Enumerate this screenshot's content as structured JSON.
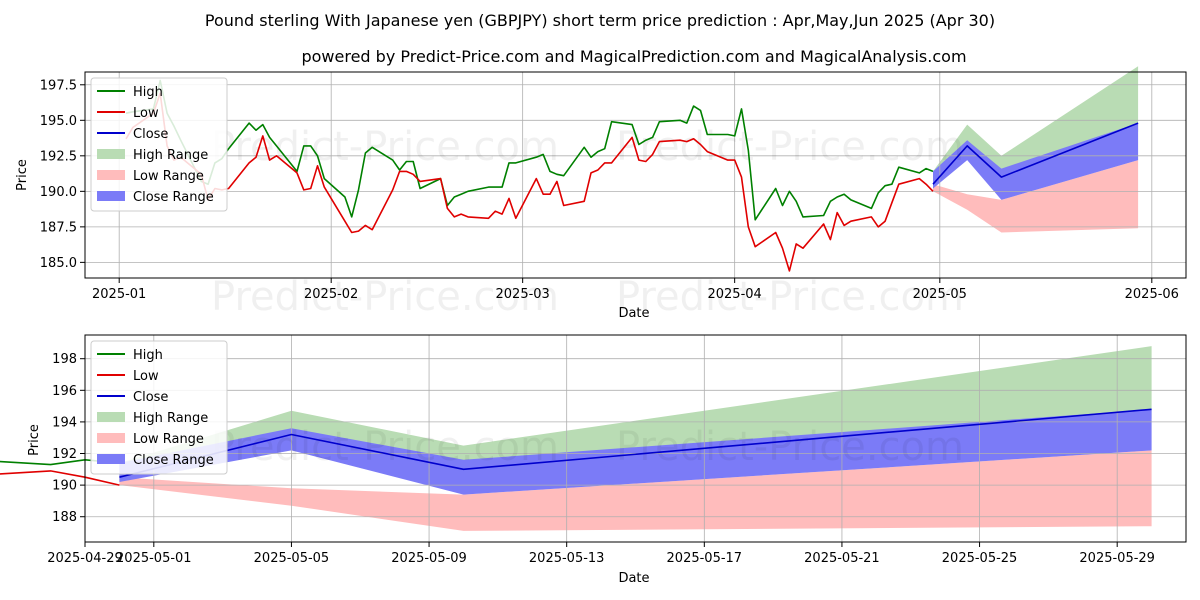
{
  "title": "Pound sterling With Japanese yen (GBPJPY) short term price prediction : Apr,May,Jun 2025 (Apr 30)",
  "subtitle": "powered by Predict-Price.com and MagicalPrediction.com and MagicalAnalysis.com",
  "watermark": "Predict-Price.com",
  "colors": {
    "high": "#008000",
    "low": "#e00000",
    "close": "#0000cc",
    "high_range": "#b9dcb4",
    "low_range": "#ffbcbc",
    "close_range": "#7b7bf7"
  },
  "chart_data": [
    {
      "type": "line",
      "xlabel": "Date",
      "ylabel": "Price",
      "grid": true,
      "legend_position": "top-left",
      "x_ticks": [
        "2025-01",
        "2025-02",
        "2025-03",
        "2025-04",
        "2025-05",
        "2025-06"
      ],
      "y_ticks": [
        "185.0",
        "187.5",
        "190.0",
        "192.5",
        "195.0",
        "197.5"
      ],
      "xlim": [
        "2024-12-27",
        "2025-06-06"
      ],
      "ylim": [
        183.9,
        198.4
      ],
      "legend": [
        "High",
        "Low",
        "Close",
        "High Range",
        "Low Range",
        "Close Range"
      ],
      "history_dates": [
        "2025-01-02",
        "2025-01-03",
        "2025-01-06",
        "2025-01-07",
        "2025-01-08",
        "2025-01-09",
        "2025-01-10",
        "2025-01-13",
        "2025-01-14",
        "2025-01-15",
        "2025-01-16",
        "2025-01-17",
        "2025-01-20",
        "2025-01-21",
        "2025-01-22",
        "2025-01-23",
        "2025-01-24",
        "2025-01-27",
        "2025-01-28",
        "2025-01-29",
        "2025-01-30",
        "2025-01-31",
        "2025-02-03",
        "2025-02-04",
        "2025-02-05",
        "2025-02-06",
        "2025-02-07",
        "2025-02-10",
        "2025-02-11",
        "2025-02-12",
        "2025-02-13",
        "2025-02-14",
        "2025-02-17",
        "2025-02-18",
        "2025-02-19",
        "2025-02-20",
        "2025-02-21",
        "2025-02-24",
        "2025-02-25",
        "2025-02-26",
        "2025-02-27",
        "2025-02-28",
        "2025-03-03",
        "2025-03-04",
        "2025-03-05",
        "2025-03-06",
        "2025-03-07",
        "2025-03-10",
        "2025-03-11",
        "2025-03-12",
        "2025-03-13",
        "2025-03-14",
        "2025-03-17",
        "2025-03-18",
        "2025-03-19",
        "2025-03-20",
        "2025-03-21",
        "2025-03-24",
        "2025-03-25",
        "2025-03-26",
        "2025-03-27",
        "2025-03-28",
        "2025-03-31",
        "2025-04-01",
        "2025-04-02",
        "2025-04-03",
        "2025-04-04",
        "2025-04-07",
        "2025-04-08",
        "2025-04-09",
        "2025-04-10",
        "2025-04-11",
        "2025-04-14",
        "2025-04-15",
        "2025-04-16",
        "2025-04-17",
        "2025-04-18",
        "2025-04-21",
        "2025-04-22",
        "2025-04-23",
        "2025-04-24",
        "2025-04-25",
        "2025-04-28",
        "2025-04-29",
        "2025-04-30"
      ],
      "high_history": [
        195.5,
        195.6,
        195.8,
        197.8,
        195.5,
        194.6,
        193.6,
        190.7,
        190.5,
        192.0,
        192.3,
        193.0,
        194.8,
        194.3,
        194.7,
        193.8,
        193.2,
        191.4,
        193.2,
        193.2,
        192.5,
        190.9,
        189.6,
        188.2,
        190.1,
        192.7,
        193.1,
        192.2,
        191.5,
        192.1,
        192.1,
        190.2,
        190.9,
        189.0,
        189.6,
        189.8,
        190.0,
        190.3,
        190.3,
        190.3,
        192.0,
        192.0,
        192.4,
        192.6,
        191.4,
        191.2,
        191.1,
        193.1,
        192.4,
        192.8,
        193.0,
        194.9,
        194.7,
        193.3,
        193.6,
        193.8,
        194.9,
        195.0,
        194.8,
        196.0,
        195.7,
        194.0,
        194.0,
        193.9,
        195.8,
        192.9,
        188.0,
        190.2,
        189.0,
        190.0,
        189.3,
        188.2,
        188.3,
        189.3,
        189.6,
        189.8,
        189.4,
        188.8,
        189.9,
        190.4,
        190.5,
        191.7,
        191.3,
        191.6,
        191.4
      ],
      "low_history": [
        193.7,
        194.5,
        195.5,
        196.9,
        193.2,
        192.2,
        192.4,
        191.2,
        189.4,
        190.2,
        190.1,
        190.2,
        192.0,
        192.4,
        193.9,
        192.2,
        192.5,
        191.3,
        190.1,
        190.2,
        191.8,
        190.3,
        187.9,
        187.1,
        187.2,
        187.6,
        187.3,
        190.1,
        191.4,
        191.4,
        191.2,
        190.7,
        190.9,
        188.8,
        188.2,
        188.4,
        188.2,
        188.1,
        188.6,
        188.4,
        189.5,
        188.1,
        190.9,
        189.8,
        189.8,
        190.7,
        189.0,
        189.3,
        191.3,
        191.5,
        192.0,
        192.0,
        193.8,
        192.2,
        192.1,
        192.6,
        193.5,
        193.6,
        193.5,
        193.7,
        193.3,
        192.8,
        192.2,
        192.2,
        191.0,
        187.5,
        186.1,
        187.1,
        186.0,
        184.4,
        186.3,
        186.0,
        187.7,
        186.6,
        188.5,
        187.6,
        187.9,
        188.2,
        187.5,
        187.9,
        189.2,
        190.5,
        190.9,
        190.5,
        190.0
      ],
      "forecast_dates": [
        "2025-04-30",
        "2025-05-05",
        "2025-05-10",
        "2025-05-30"
      ],
      "close_forecast": [
        190.5,
        193.2,
        191.0,
        194.8
      ],
      "high_range": {
        "upper": [
          191.4,
          194.7,
          192.5,
          198.8
        ],
        "lower": [
          190.3,
          192.5,
          190.9,
          194.2
        ]
      },
      "low_range": {
        "upper": [
          190.5,
          189.8,
          189.4,
          192.2
        ],
        "lower": [
          190.0,
          188.7,
          187.1,
          187.4
        ]
      },
      "close_range": {
        "upper": [
          191.4,
          193.6,
          191.6,
          194.8
        ],
        "lower": [
          190.2,
          192.2,
          189.4,
          192.2
        ]
      }
    },
    {
      "type": "line",
      "xlabel": "Date",
      "ylabel": "Price",
      "grid": true,
      "legend_position": "top-left",
      "x_ticks": [
        "2025-04-29",
        "2025-05-01",
        "2025-05-05",
        "2025-05-09",
        "2025-05-13",
        "2025-05-17",
        "2025-05-21",
        "2025-05-25",
        "2025-05-29"
      ],
      "y_ticks": [
        "188",
        "190",
        "192",
        "194",
        "196",
        "198"
      ],
      "xlim": [
        "2025-04-29",
        "2025-05-31"
      ],
      "ylim": [
        186.4,
        199.5
      ],
      "legend": [
        "High",
        "Low",
        "Close",
        "High Range",
        "Low Range",
        "Close Range"
      ]
    }
  ]
}
